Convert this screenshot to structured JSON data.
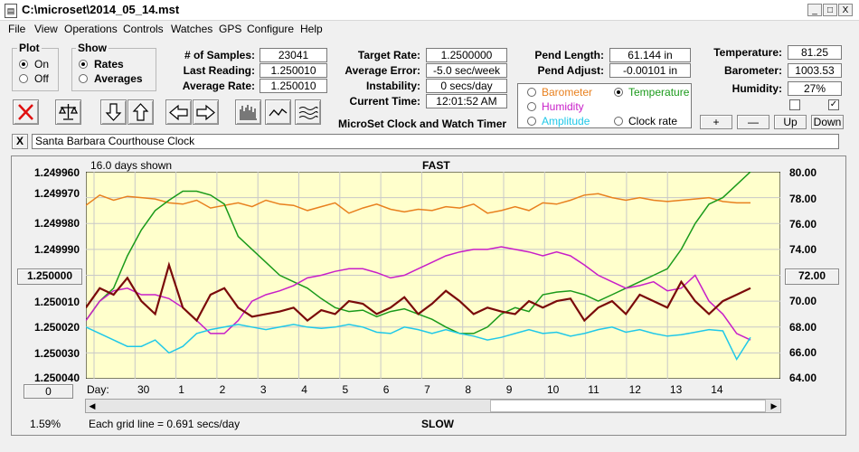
{
  "window": {
    "title": "C:\\microset\\2014_05_14.mst",
    "min_glyph": "_",
    "max_glyph": "□",
    "close_glyph": "X"
  },
  "menu": [
    "File",
    "View",
    "Operations",
    "Controls",
    "Watches",
    "GPS",
    "Configure",
    "Help"
  ],
  "plot_group": {
    "label": "Plot",
    "options": [
      "On",
      "Off"
    ],
    "selected": 0
  },
  "show_group": {
    "label": "Show",
    "options": [
      "Rates",
      "Averages"
    ],
    "selected": 0
  },
  "stats": [
    {
      "label": "# of Samples:",
      "value": "23041"
    },
    {
      "label": "Last Reading:",
      "value": "1.250010"
    },
    {
      "label": "Average Rate:",
      "value": "1.250010"
    }
  ],
  "rates": [
    {
      "label": "Target Rate:",
      "value": "1.2500000"
    },
    {
      "label": "Average Error:",
      "value": "-5.0 sec/week"
    },
    {
      "label": "Instability:",
      "value": "0 secs/day"
    },
    {
      "label": "Current Time:",
      "value": "12:01:52 AM"
    }
  ],
  "pendulum": [
    {
      "label": "Pend Length:",
      "value": "61.144 in"
    },
    {
      "label": "Pend Adjust:",
      "value": "-0.00101 in"
    }
  ],
  "sensor_options": [
    {
      "label": "Barometer",
      "color": "#e8801e",
      "selected": false
    },
    {
      "label": "Temperature",
      "color": "#1a9a1a",
      "selected": true
    },
    {
      "label": "Humidity",
      "color": "#c81ec8",
      "selected": false
    },
    {
      "label": "Clock rate",
      "color": "#000000",
      "selected": false
    },
    {
      "label": "Amplitude",
      "color": "#20c8e8",
      "selected": false
    }
  ],
  "env": [
    {
      "label": "Temperature:",
      "value": "81.25"
    },
    {
      "label": "Barometer:",
      "value": "1003.53"
    },
    {
      "label": "Humidity:",
      "value": "27%"
    }
  ],
  "env_checks": [
    false,
    true
  ],
  "env_buttons": [
    "+",
    "—",
    "Up",
    "Down"
  ],
  "app_title": "MicroSet Clock and Watch Timer",
  "toolbar_icons": [
    "close-x",
    "balance-scale",
    "arrow-down",
    "arrow-up",
    "arrow-left",
    "arrow-right",
    "histogram",
    "wave",
    "multi-wave"
  ],
  "clock_name": "Santa Barbara Courthouse Clock",
  "clear_glyph": "X",
  "chart_data": {
    "type": "line",
    "days_shown": "16.0 days shown",
    "top_label": "FAST",
    "bottom_label": "SLOW",
    "grid_note": "Each grid line = 0.691 secs/day",
    "zoom_percent": "1.59%",
    "left_axis": {
      "ticks": [
        "1.249960",
        "1.249970",
        "1.249980",
        "1.249990",
        "1.250000",
        "1.250010",
        "1.250020",
        "1.250030",
        "1.250040"
      ],
      "center_button": "1.250000"
    },
    "right_axis": {
      "ticks": [
        "80.00",
        "78.00",
        "76.00",
        "74.00",
        "72.00",
        "70.00",
        "68.00",
        "66.00",
        "64.00"
      ],
      "center_button": "72.00",
      "range": [
        64,
        80
      ]
    },
    "x_axis": {
      "label": "Day:",
      "ticks": [
        "30",
        "1",
        "2",
        "3",
        "4",
        "5",
        "6",
        "7",
        "8",
        "9",
        "10",
        "11",
        "12",
        "13",
        "14"
      ]
    },
    "offset_button": "0",
    "background": "#ffffcc",
    "series": [
      {
        "id": "barometer",
        "color": "#e8801e",
        "width": 1.5,
        "values": [
          77.4,
          78.2,
          77.8,
          78.1,
          78.0,
          77.9,
          77.6,
          77.5,
          77.8,
          77.2,
          77.4,
          77.6,
          77.3,
          77.8,
          77.5,
          77.4,
          77.0,
          77.3,
          77.6,
          76.8,
          77.2,
          77.5,
          77.1,
          76.9,
          77.1,
          77.0,
          77.3,
          77.2,
          77.5,
          76.8,
          77.0,
          77.3,
          77.0,
          77.6,
          77.5,
          77.8,
          78.2,
          78.3,
          78.0,
          77.8,
          78.0,
          77.8,
          77.7,
          77.8,
          77.9,
          78.0,
          77.7,
          77.6,
          77.6
        ]
      },
      {
        "id": "temperature",
        "color": "#1a9a1a",
        "width": 1.5,
        "values": [
          68.5,
          70.0,
          71.0,
          73.5,
          75.5,
          77.0,
          77.8,
          78.5,
          78.5,
          78.2,
          77.5,
          75.0,
          74.0,
          73.0,
          72.0,
          71.5,
          71.0,
          70.2,
          69.5,
          69.2,
          69.3,
          68.8,
          69.2,
          69.4,
          69.0,
          68.6,
          68.0,
          67.5,
          67.5,
          68.0,
          69.0,
          69.5,
          69.2,
          70.5,
          70.7,
          70.8,
          70.5,
          70.0,
          70.5,
          71.0,
          71.5,
          72.0,
          72.5,
          74.0,
          76.0,
          77.5,
          78.0,
          79.0,
          80.0
        ]
      },
      {
        "id": "humidity",
        "color": "#c81ec8",
        "width": 1.5,
        "values": [
          68.5,
          70.0,
          70.8,
          71.0,
          70.5,
          70.5,
          70.2,
          69.5,
          68.5,
          67.5,
          67.5,
          68.5,
          70.0,
          70.5,
          70.8,
          71.2,
          71.8,
          72.0,
          72.3,
          72.5,
          72.5,
          72.2,
          71.8,
          72.0,
          72.5,
          73.0,
          73.5,
          73.8,
          74.0,
          74.0,
          74.2,
          74.0,
          73.8,
          73.5,
          73.8,
          73.5,
          72.8,
          72.0,
          71.5,
          71.0,
          71.2,
          71.5,
          70.8,
          71.0,
          72.0,
          70.0,
          69.0,
          67.5,
          67.0
        ]
      },
      {
        "id": "amplitude",
        "color": "#20c8e8",
        "width": 1.5,
        "values": [
          68.0,
          67.5,
          67.0,
          66.5,
          66.5,
          67.0,
          66.0,
          66.5,
          67.5,
          67.8,
          68.0,
          68.2,
          68.0,
          67.8,
          68.0,
          68.2,
          68.0,
          67.9,
          68.0,
          68.2,
          68.0,
          67.6,
          67.5,
          68.0,
          67.8,
          67.5,
          67.8,
          67.5,
          67.3,
          67.0,
          67.2,
          67.5,
          67.8,
          67.5,
          67.6,
          67.3,
          67.5,
          67.8,
          68.0,
          67.6,
          67.8,
          67.5,
          67.3,
          67.4,
          67.6,
          67.8,
          67.7,
          65.5,
          67.2
        ]
      },
      {
        "id": "clock-rate",
        "color": "#7a0a0a",
        "width": 2.2,
        "values": [
          69.5,
          71.0,
          70.5,
          71.8,
          70.0,
          69.0,
          72.8,
          69.5,
          68.5,
          70.5,
          71.0,
          69.5,
          68.8,
          69.0,
          69.2,
          69.5,
          68.5,
          69.3,
          69.0,
          70.0,
          69.8,
          69.0,
          69.5,
          70.3,
          69.0,
          69.8,
          70.8,
          70.0,
          69.0,
          69.5,
          69.2,
          69.0,
          70.0,
          69.5,
          70.0,
          70.2,
          68.5,
          69.5,
          70.0,
          69.0,
          70.5,
          70.0,
          69.5,
          71.5,
          70.0,
          69.0,
          70.0,
          70.5,
          71.0
        ]
      }
    ]
  }
}
